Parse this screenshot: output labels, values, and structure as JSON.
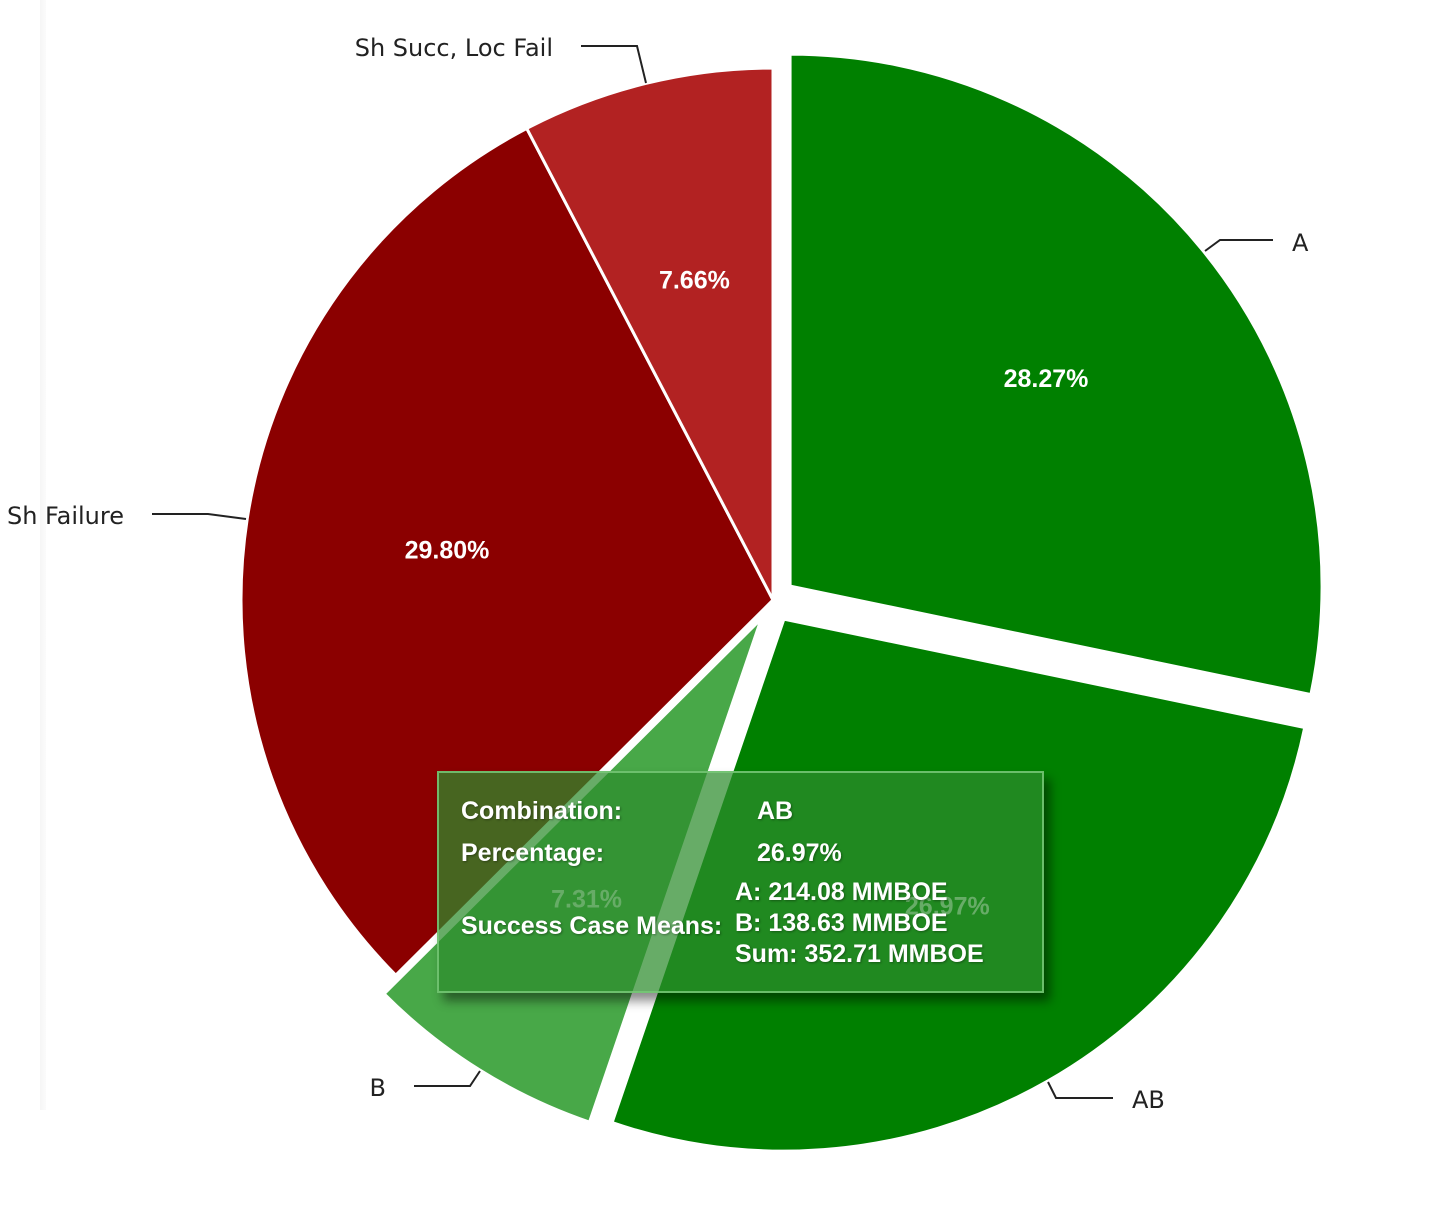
{
  "chart_data": {
    "type": "pie",
    "slices": [
      {
        "label": "A",
        "value": 28.27,
        "value_label": "28.27%",
        "color": "#008000",
        "exploded": true
      },
      {
        "label": "AB",
        "value": 26.97,
        "value_label": "26.97%",
        "color": "#008000",
        "exploded": true
      },
      {
        "label": "B",
        "value": 7.31,
        "value_label": "7.31%",
        "color": "#48a848",
        "exploded": true,
        "highlighted": true
      },
      {
        "label": "Sh Failure",
        "value": 29.8,
        "value_label": "29.80%",
        "color": "#8b0000",
        "exploded": false
      },
      {
        "label": "Sh Succ, Loc Fail",
        "value": 7.66,
        "value_label": "7.66%",
        "color": "#b22222",
        "exploded": false
      }
    ],
    "start": "12 o'clock",
    "direction": "clockwise",
    "data_labels": "percent inside slices",
    "category_labels": "outside with leader lines",
    "legend": "none"
  },
  "tooltip": {
    "combination_key": "Combination:",
    "combination_value": "AB",
    "percentage_key": "Percentage:",
    "percentage_value": "26.97%",
    "means_key": "Success Case Means:",
    "means_lines": [
      "A: 214.08 MMBOE",
      "B: 138.63 MMBOE",
      "Sum: 352.71 MMBOE"
    ]
  }
}
